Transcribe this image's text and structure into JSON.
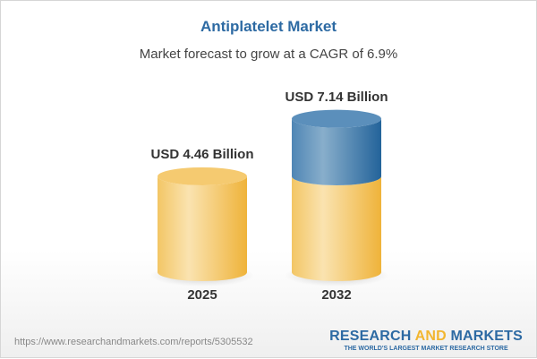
{
  "title": "Antiplatelet Market",
  "subtitle": "Market forecast to grow at a CAGR of 6.9%",
  "chart_data": {
    "type": "bar",
    "style": "3d-cylinder",
    "categories": [
      "2025",
      "2032"
    ],
    "values": [
      4.46,
      7.14
    ],
    "data_labels": [
      "USD 4.46 Billion",
      "USD 7.14 Billion"
    ],
    "unit": "USD Billion",
    "colors": {
      "base": "#f2c15c",
      "growth": "#4f86b5"
    },
    "title": "Antiplatelet Market"
  },
  "footer": {
    "url": "https://www.researchandmarkets.com/reports/5305532",
    "logo_research": "RESEARCH",
    "logo_and": "AND",
    "logo_markets": "MARKETS",
    "logo_tagline": "THE WORLD'S LARGEST MARKET RESEARCH STORE"
  }
}
